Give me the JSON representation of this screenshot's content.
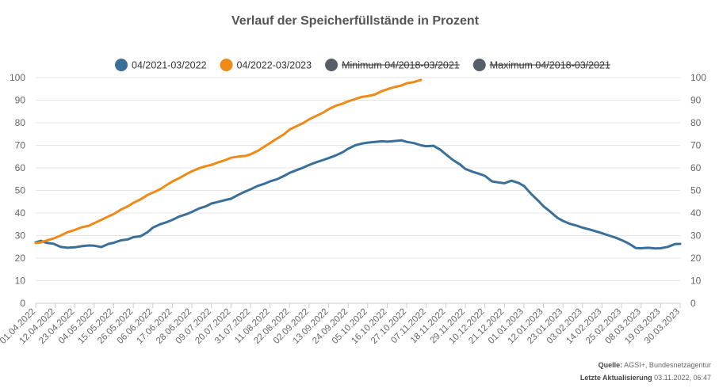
{
  "chart_data": {
    "type": "line",
    "title": "Verlauf der Speicherfüllstände in Prozent",
    "ylim": [
      0,
      100
    ],
    "yticks": [
      0,
      10,
      20,
      30,
      40,
      50,
      60,
      70,
      80,
      90,
      100
    ],
    "xlabels": [
      "01.04.2022",
      "12.04.2022",
      "23.04.2022",
      "04.05.2022",
      "15.05.2022",
      "26.05.2022",
      "06.06.2022",
      "17.06.2022",
      "28.06.2022",
      "09.07.2022",
      "20.07.2022",
      "31.07.2022",
      "11.08.2022",
      "22.08.2022",
      "02.09.2022",
      "13.09.2022",
      "24.09.2022",
      "05.10.2022",
      "16.10.2022",
      "27.10.2022",
      "07.11.2022",
      "18.11.2022",
      "29.11.2022",
      "10.12.2022",
      "21.12.2022",
      "01.01.2023",
      "12.01.2023",
      "23.01.2023",
      "03.02.2023",
      "14.02.2023",
      "25.02.2023",
      "08.03.2023",
      "19.03.2023",
      "30.03.2023"
    ],
    "x_day_index": [
      0,
      11,
      22,
      33,
      44,
      55,
      66,
      77,
      88,
      99,
      110,
      121,
      132,
      143,
      154,
      165,
      176,
      187,
      198,
      209,
      220,
      231,
      242,
      253,
      264,
      275,
      286,
      297,
      308,
      319,
      330,
      341,
      352,
      363
    ],
    "grid": true,
    "legend_position": "top-center",
    "series": [
      {
        "name": "04/2021-03/2022",
        "color": "#3a6f9a",
        "visible": true,
        "x": [
          0,
          3,
          6,
          10,
          14,
          18,
          22,
          26,
          30,
          33,
          37,
          41,
          44,
          48,
          52,
          55,
          59,
          63,
          66,
          70,
          74,
          77,
          81,
          85,
          88,
          92,
          96,
          99,
          103,
          107,
          110,
          114,
          118,
          121,
          125,
          129,
          132,
          136,
          140,
          143,
          147,
          151,
          154,
          158,
          162,
          165,
          169,
          173,
          176,
          180,
          184,
          187,
          191,
          195,
          198,
          202,
          206,
          209,
          213,
          217,
          220,
          224,
          228,
          231,
          235,
          239,
          242,
          246,
          250,
          253,
          257,
          261,
          264,
          268,
          272,
          275,
          279,
          283,
          286,
          290,
          294,
          297,
          301,
          305,
          308,
          312,
          316,
          319,
          323,
          327,
          330,
          334,
          338,
          341,
          345,
          349,
          352,
          356,
          360,
          363
        ],
        "y": [
          27,
          27.7,
          26.8,
          26.4,
          25,
          24.6,
          24.8,
          25.3,
          25.6,
          25.5,
          24.9,
          26.3,
          26.8,
          27.9,
          28.3,
          29.3,
          29.7,
          31.5,
          33.5,
          35.0,
          36.0,
          37.0,
          38.5,
          39.5,
          40.5,
          42.0,
          43.0,
          44.2,
          45.0,
          45.8,
          46.3,
          48.0,
          49.5,
          50.5,
          52.0,
          53.0,
          54.0,
          55.0,
          56.5,
          57.8,
          59.0,
          60.2,
          61.3,
          62.5,
          63.5,
          64.3,
          65.5,
          67.0,
          68.5,
          70.0,
          70.8,
          71.2,
          71.5,
          71.8,
          71.6,
          71.9,
          72.2,
          71.5,
          71.0,
          70.0,
          69.6,
          69.8,
          68.0,
          66.0,
          63.5,
          61.5,
          59.5,
          58.3,
          57.3,
          56.5,
          54.0,
          53.5,
          53.2,
          54.3,
          53.3,
          52.0,
          48.5,
          45.5,
          43.0,
          40.5,
          37.8,
          36.5,
          35.2,
          34.3,
          33.5,
          32.7,
          31.8,
          31.0,
          30.0,
          29.0,
          28.0,
          26.5,
          24.5,
          24.4,
          24.6,
          24.3,
          24.4,
          25.0,
          26.2,
          26.3
        ]
      },
      {
        "name": "04/2022-03/2023",
        "color": "#ef8a17",
        "visible": true,
        "x": [
          0,
          3,
          6,
          10,
          14,
          18,
          22,
          26,
          30,
          33,
          37,
          41,
          44,
          48,
          52,
          55,
          59,
          63,
          66,
          70,
          74,
          77,
          81,
          85,
          88,
          92,
          96,
          99,
          103,
          107,
          110,
          114,
          118,
          121,
          125,
          129,
          132,
          136,
          140,
          143,
          147,
          151,
          154,
          158,
          162,
          165,
          169,
          173,
          176,
          180,
          184,
          187,
          191,
          195,
          198,
          202,
          206,
          209,
          213,
          217
        ],
        "y": [
          26.7,
          27.0,
          27.8,
          28.7,
          30.0,
          31.5,
          32.5,
          33.7,
          34.4,
          35.5,
          37.0,
          38.5,
          39.5,
          41.5,
          43.0,
          44.5,
          46.0,
          48.0,
          49.0,
          50.5,
          52.5,
          54.0,
          55.5,
          57.3,
          58.5,
          59.8,
          60.8,
          61.3,
          62.5,
          63.5,
          64.5,
          65.0,
          65.3,
          66.0,
          67.5,
          69.5,
          71.0,
          73.0,
          75.0,
          77.0,
          78.5,
          80.0,
          81.5,
          83.0,
          84.5,
          86.0,
          87.5,
          88.5,
          89.5,
          90.5,
          91.5,
          91.8,
          92.5,
          94.0,
          94.8,
          95.8,
          96.5,
          97.5,
          98.0,
          99.0
        ]
      },
      {
        "name": "Minimum 04/2018-03/2021",
        "color": "#505a64",
        "visible": false,
        "x": [],
        "y": []
      },
      {
        "name": "Maximum 04/2018-03/2021",
        "color": "#c8ccd0",
        "visible": false,
        "x": [],
        "y": []
      }
    ]
  },
  "source": {
    "label": "Quelle:",
    "value": "AGSI+, Bundesnetzagentur"
  },
  "update": {
    "label": "Letzte Aktualisierung",
    "value": "03.11.2022, 06:47"
  }
}
